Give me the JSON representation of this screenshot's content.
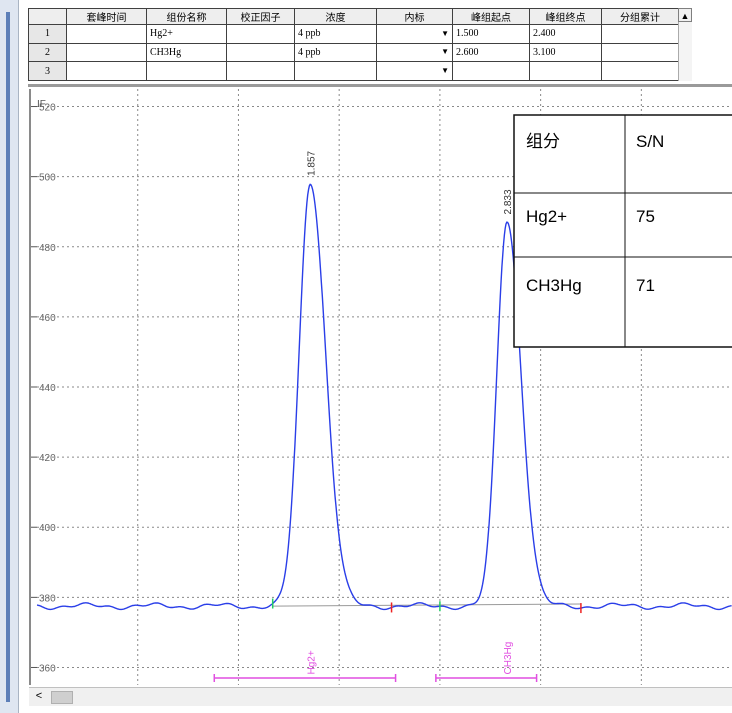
{
  "table": {
    "headers": [
      "",
      "套峰时间",
      "组份名称",
      "校正因子",
      "浓度",
      "内标",
      "峰组起点",
      "峰组终点",
      "分组累计"
    ],
    "rows": [
      {
        "num": "1",
        "time": "",
        "name": "Hg2+",
        "factor": "",
        "conc": "4 ppb",
        "istd": "",
        "start": "1.500",
        "end": "2.400",
        "cum": ""
      },
      {
        "num": "2",
        "time": "",
        "name": "CH3Hg",
        "factor": "",
        "conc": "4 ppb",
        "istd": "",
        "start": "2.600",
        "end": "3.100",
        "cum": ""
      },
      {
        "num": "3",
        "time": "",
        "name": "",
        "factor": "",
        "conc": "",
        "istd": "",
        "start": "",
        "end": "",
        "cum": ""
      }
    ],
    "scroll_up_glyph": "▲",
    "dropdown_glyph": "▼"
  },
  "chart_data": {
    "type": "line",
    "y_axis_label": "IF",
    "ylim": [
      355,
      525
    ],
    "xlim": [
      0.5,
      3.95
    ],
    "y_ticks": [
      360,
      380,
      400,
      420,
      440,
      460,
      480,
      500,
      520
    ],
    "y_tick_labels": [
      "360",
      "380",
      "400",
      "420",
      "440",
      "460",
      "480",
      "500",
      "520"
    ],
    "x_gridlines": [
      1,
      1.5,
      2,
      2.5,
      3,
      3.5
    ],
    "baseline": 377.5,
    "peaks": [
      {
        "label": "1.857",
        "name": "Hg2+",
        "x": 1.857,
        "y": 498.5,
        "start": 1.5,
        "end": 2.4
      },
      {
        "label": "2.833",
        "name": "CH3Hg",
        "x": 2.833,
        "y": 487.5,
        "start": 2.6,
        "end": 3.1
      }
    ],
    "markers": [
      {
        "x": 1.67,
        "color": "#22cc66"
      },
      {
        "x": 2.26,
        "color": "#ee2222"
      },
      {
        "x": 2.5,
        "color": "#22cc66"
      },
      {
        "x": 3.2,
        "color": "#ee2222"
      }
    ],
    "series_color": "#2a3ee8",
    "baseline_color": "#999999",
    "label_color": "#e14fe1",
    "grid": true
  },
  "sn_table": {
    "headers": [
      "组分",
      "S/N"
    ],
    "rows": [
      {
        "component": "Hg2+",
        "sn": "75"
      },
      {
        "component": "CH3Hg",
        "sn": "71"
      }
    ]
  },
  "hscroll": {
    "left_glyph": "<"
  }
}
